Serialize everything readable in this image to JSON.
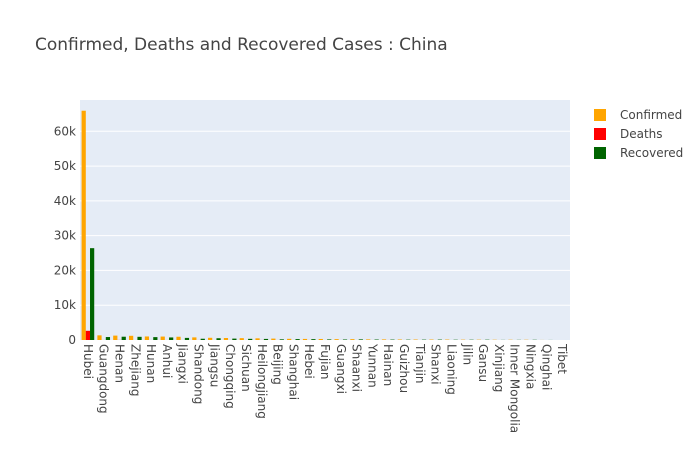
{
  "chart_data": {
    "type": "bar",
    "title": "Confirmed, Deaths and Recovered Cases : China",
    "xlabel": "",
    "ylabel": "",
    "ylim": [
      0,
      69000
    ],
    "y_ticks": [
      0,
      10000,
      20000,
      30000,
      40000,
      50000,
      60000
    ],
    "y_tick_labels": [
      "0",
      "10k",
      "20k",
      "30k",
      "40k",
      "50k",
      "60k"
    ],
    "grid": true,
    "legend_position": "top-right",
    "categories": [
      "Hubei",
      "Guangdong",
      "Henan",
      "Zhejiang",
      "Hunan",
      "Anhui",
      "Jiangxi",
      "Shandong",
      "Jiangsu",
      "Chongqing",
      "Sichuan",
      "Heilongjiang",
      "Beijing",
      "Shanghai",
      "Hebei",
      "Fujian",
      "Guangxi",
      "Shaanxi",
      "Yunnan",
      "Hainan",
      "Guizhou",
      "Tianjin",
      "Shanxi",
      "Liaoning",
      "Jilin",
      "Gansu",
      "Xinjiang",
      "Inner Mongolia",
      "Ningxia",
      "Qinghai",
      "Tibet"
    ],
    "series": [
      {
        "name": "Confirmed",
        "color": "#FFA500",
        "values": [
          65914,
          1339,
          1262,
          1205,
          1014,
          989,
          934,
          753,
          631,
          575,
          527,
          479,
          399,
          335,
          309,
          294,
          249,
          245,
          174,
          168,
          146,
          135,
          132,
          121,
          93,
          91,
          76,
          75,
          71,
          18,
          1
        ]
      },
      {
        "name": "Deaths",
        "color": "#FF0000",
        "values": [
          2641,
          7,
          19,
          1,
          4,
          6,
          1,
          6,
          0,
          6,
          3,
          12,
          4,
          3,
          6,
          1,
          2,
          1,
          2,
          5,
          2,
          3,
          0,
          1,
          1,
          2,
          2,
          0,
          0,
          0,
          0
        ]
      },
      {
        "name": "Recovered",
        "color": "#006400",
        "values": [
          26403,
          852,
          944,
          915,
          828,
          733,
          605,
          361,
          506,
          399,
          335,
          312,
          196,
          264,
          247,
          167,
          141,
          180,
          132,
          112,
          93,
          96,
          112,
          77,
          78,
          83,
          29,
          42,
          61,
          18,
          1
        ]
      }
    ]
  }
}
